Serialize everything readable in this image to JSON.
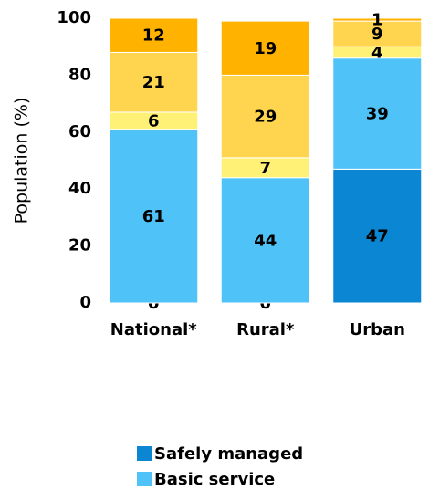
{
  "chart_data": {
    "type": "stacked_bar",
    "y_label": "Population (%)",
    "categories": [
      "National*",
      "Rural*",
      "Urban"
    ],
    "series": [
      {
        "name": "Safely managed",
        "color": "#0a86d2",
        "values": [
          0,
          0,
          47
        ]
      },
      {
        "name": "Basic service",
        "color": "#4fc3f7",
        "values": [
          61,
          44,
          39
        ]
      },
      {
        "color": "#fff176",
        "values": [
          6,
          7,
          4
        ]
      },
      {
        "color": "#ffd54f",
        "values": [
          21,
          29,
          9
        ]
      },
      {
        "color": "#ffb300",
        "values": [
          12,
          19,
          1
        ]
      }
    ],
    "ylim": [
      0,
      100
    ],
    "yticks": [
      0,
      20,
      40,
      60,
      80,
      100
    ],
    "grid": false
  }
}
